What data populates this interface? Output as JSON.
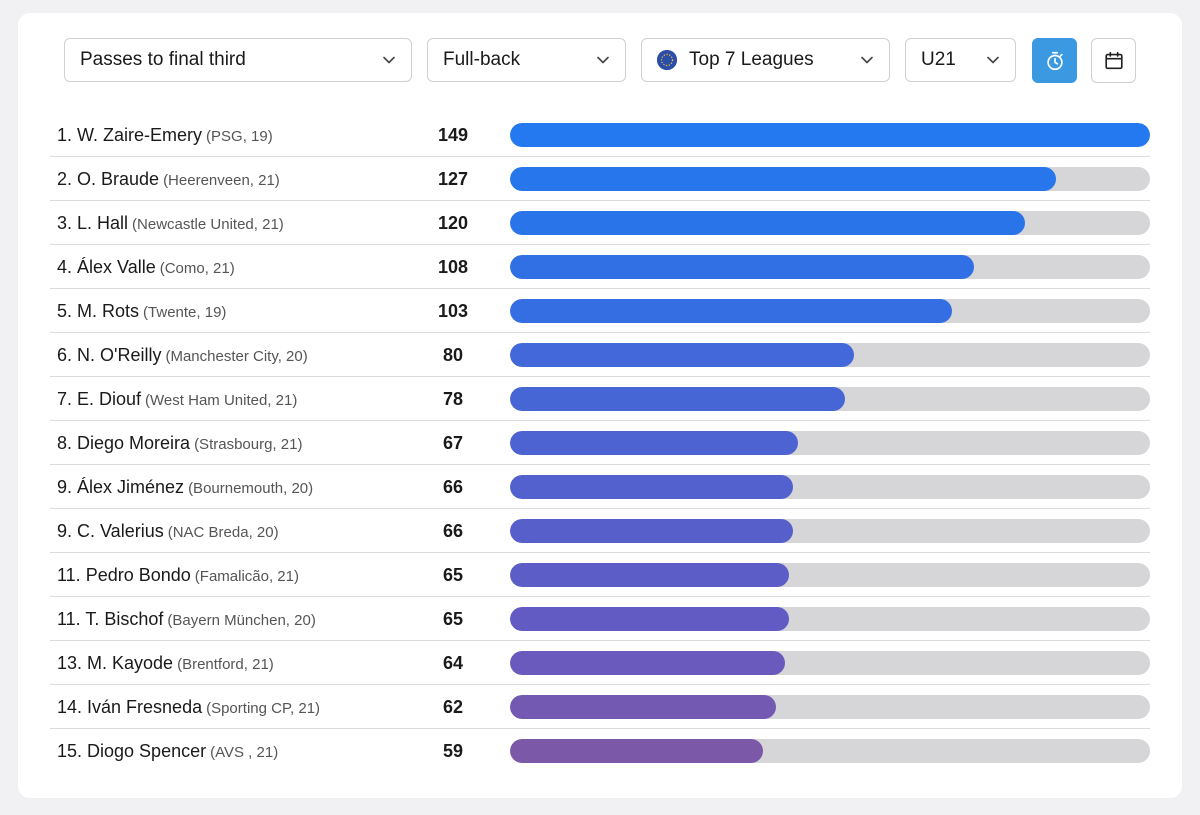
{
  "filters": {
    "metric": "Passes to final third",
    "position": "Full-back",
    "league": "Top 7 Leagues",
    "age": "U21"
  },
  "toolbar_icons": {
    "timer": "stopwatch-icon",
    "calendar": "calendar-icon",
    "timer_active_color": "#3a99e0"
  },
  "chart_data": {
    "type": "bar",
    "categories": [
      "1. W. Zaire-Emery",
      "2. O. Braude",
      "3. L. Hall",
      "4. Álex Valle",
      "5. M. Rots",
      "6. N. O'Reilly",
      "7. E. Diouf",
      "8. Diego Moreira",
      "9. Álex Jiménez",
      "9. C. Valerius",
      "11. Pedro Bondo",
      "11. T. Bischof",
      "13. M. Kayode",
      "14. Iván Fresneda",
      "15. Diogo Spencer"
    ],
    "values": [
      149,
      127,
      120,
      108,
      103,
      80,
      78,
      67,
      66,
      66,
      65,
      65,
      64,
      62,
      59
    ],
    "xlim": [
      0,
      149
    ],
    "orientation": "horizontal",
    "grid": false
  },
  "rows": [
    {
      "name": "1. W. Zaire-Emery",
      "meta": "(PSG, 19)",
      "value": "149",
      "color": "#2478f0"
    },
    {
      "name": "2. O. Braude",
      "meta": "(Heerenveen, 21)",
      "value": "127",
      "color": "#2776ec"
    },
    {
      "name": "3. L. Hall",
      "meta": "(Newcastle United, 21)",
      "value": "120",
      "color": "#2a74ea"
    },
    {
      "name": "4. Álex Valle",
      "meta": "(Como, 21)",
      "value": "108",
      "color": "#3070e4"
    },
    {
      "name": "5. M. Rots",
      "meta": "(Twente, 19)",
      "value": "103",
      "color": "#346ee2"
    },
    {
      "name": "6. N. O'Reilly",
      "meta": "(Manchester City, 20)",
      "value": "80",
      "color": "#4368d9"
    },
    {
      "name": "7. E. Diouf",
      "meta": "(West Ham United, 21)",
      "value": "78",
      "color": "#4766d6"
    },
    {
      "name": "8. Diego Moreira",
      "meta": "(Strasbourg, 21)",
      "value": "67",
      "color": "#4e63d2"
    },
    {
      "name": "9. Álex Jiménez",
      "meta": "(Bournemouth, 20)",
      "value": "66",
      "color": "#5361cf"
    },
    {
      "name": "9. C. Valerius",
      "meta": "(NAC Breda, 20)",
      "value": "66",
      "color": "#575fcb"
    },
    {
      "name": "11. Pedro Bondo",
      "meta": "(Famalicão, 21)",
      "value": "65",
      "color": "#5d5dc7"
    },
    {
      "name": "11. T. Bischof",
      "meta": "(Bayern München, 20)",
      "value": "65",
      "color": "#615bc3"
    },
    {
      "name": "13. M. Kayode",
      "meta": "(Brentford, 21)",
      "value": "64",
      "color": "#6a5abd"
    },
    {
      "name": "14. Iván Fresneda",
      "meta": "(Sporting CP, 21)",
      "value": "62",
      "color": "#7459b2"
    },
    {
      "name": "15. Diogo Spencer",
      "meta": "(AVS , 21)",
      "value": "59",
      "color": "#7c59a8"
    }
  ]
}
